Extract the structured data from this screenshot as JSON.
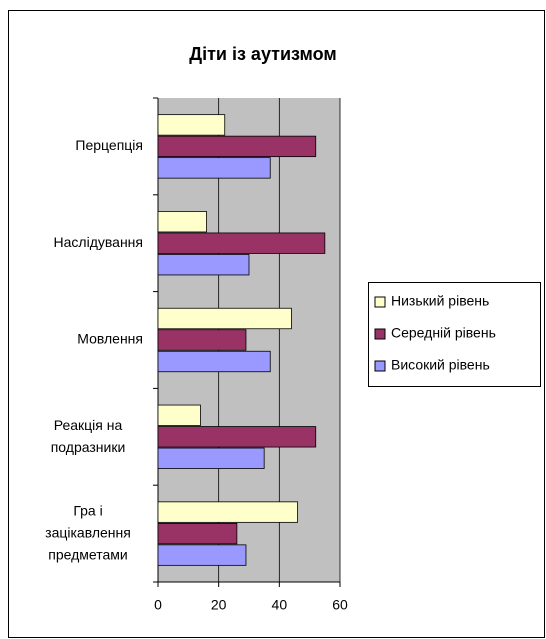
{
  "chart_data": {
    "type": "bar",
    "orientation": "horizontal",
    "title": "Діти із аутизмом",
    "categories": [
      "Перцепція",
      "Наслідування",
      "Мовлення",
      "Реакція на подразники",
      "Гра і зацікавлення предметами"
    ],
    "series": [
      {
        "name": "Низький рівень",
        "color": "#ffffcc",
        "values": [
          22,
          16,
          44,
          14,
          46
        ]
      },
      {
        "name": "Середній рівень",
        "color": "#993366",
        "values": [
          52,
          55,
          29,
          52,
          26
        ]
      },
      {
        "name": "Високий рівень",
        "color": "#9999ff",
        "values": [
          37,
          30,
          37,
          35,
          29
        ]
      }
    ],
    "xlim": [
      0,
      60
    ],
    "xticks": [
      0,
      20,
      40,
      60
    ],
    "grid": true,
    "legend": "right"
  }
}
